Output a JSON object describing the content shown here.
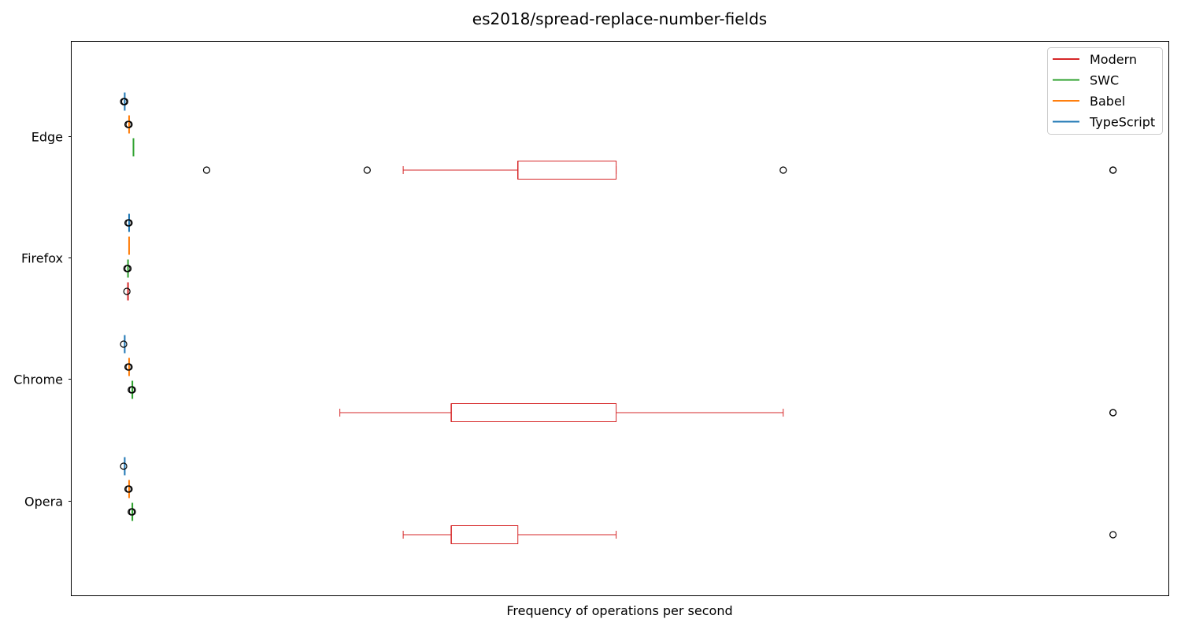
{
  "chart_data": {
    "type": "boxplot",
    "orientation": "horizontal",
    "title": "es2018/spread-replace-number-fields",
    "xlabel": "Frequency of operations per second",
    "ylabel": "",
    "x_ticks_shown": false,
    "grid": false,
    "legend_position": "top-right",
    "categories": [
      "Edge",
      "Firefox",
      "Chrome",
      "Opera"
    ],
    "series_order": [
      "TypeScript",
      "Babel",
      "SWC",
      "Modern"
    ],
    "legend": [
      "Modern",
      "SWC",
      "Babel",
      "TypeScript"
    ],
    "colors": {
      "Modern": "#d62728",
      "SWC": "#2ca02c",
      "Babel": "#ff7f0e",
      "TypeScript": "#1f77b4"
    },
    "xlim": [
      0,
      100
    ],
    "series": [
      {
        "name": "Modern",
        "boxes": [
          {
            "category": "Edge",
            "whisker_low": 30,
            "q1": 40.5,
            "median": 40.5,
            "q3": 49.5,
            "whisker_high": 49.5,
            "fliers": [
              12,
              26.7,
              64.8,
              95,
              95
            ]
          },
          {
            "category": "Firefox",
            "whisker_low": 4.7,
            "q1": 4.8,
            "median": 4.8,
            "q3": 4.8,
            "whisker_high": 4.8,
            "fliers": [
              4.7
            ]
          },
          {
            "category": "Chrome",
            "whisker_low": 24.2,
            "q1": 34.4,
            "median": 34.4,
            "q3": 49.5,
            "whisker_high": 64.8,
            "fliers": [
              95,
              95
            ]
          },
          {
            "category": "Opera",
            "whisker_low": 30,
            "q1": 34.4,
            "median": 34.4,
            "q3": 40.5,
            "whisker_high": 49.5,
            "fliers": [
              95
            ]
          }
        ]
      },
      {
        "name": "SWC",
        "boxes": [
          {
            "category": "Edge",
            "whisker_low": 5.3,
            "q1": 5.3,
            "median": 5.3,
            "q3": 5.3,
            "whisker_high": 5.3,
            "fliers": []
          },
          {
            "category": "Firefox",
            "whisker_low": 4.8,
            "q1": 4.8,
            "median": 4.8,
            "q3": 4.8,
            "whisker_high": 4.8,
            "fliers": [
              4.7,
              4.8
            ]
          },
          {
            "category": "Chrome",
            "whisker_low": 5.2,
            "q1": 5.2,
            "median": 5.2,
            "q3": 5.2,
            "whisker_high": 5.2,
            "fliers": [
              5.1,
              5.2
            ]
          },
          {
            "category": "Opera",
            "whisker_low": 5.2,
            "q1": 5.2,
            "median": 5.2,
            "q3": 5.2,
            "whisker_high": 5.2,
            "fliers": [
              5.1,
              5.2
            ]
          }
        ]
      },
      {
        "name": "Babel",
        "boxes": [
          {
            "category": "Edge",
            "whisker_low": 4.9,
            "q1": 4.9,
            "median": 4.9,
            "q3": 4.9,
            "whisker_high": 4.9,
            "fliers": [
              4.8,
              4.9
            ]
          },
          {
            "category": "Firefox",
            "whisker_low": 4.9,
            "q1": 4.9,
            "median": 4.9,
            "q3": 4.9,
            "whisker_high": 4.9,
            "fliers": []
          },
          {
            "category": "Chrome",
            "whisker_low": 4.9,
            "q1": 4.9,
            "median": 4.9,
            "q3": 4.9,
            "whisker_high": 4.9,
            "fliers": [
              4.8,
              4.9
            ]
          },
          {
            "category": "Opera",
            "whisker_low": 4.9,
            "q1": 4.9,
            "median": 4.9,
            "q3": 4.9,
            "whisker_high": 4.9,
            "fliers": [
              4.8,
              4.9
            ]
          }
        ]
      },
      {
        "name": "TypeScript",
        "boxes": [
          {
            "category": "Edge",
            "whisker_low": 4.5,
            "q1": 4.5,
            "median": 4.5,
            "q3": 4.5,
            "whisker_high": 4.5,
            "fliers": [
              4.4,
              4.5
            ]
          },
          {
            "category": "Firefox",
            "whisker_low": 4.9,
            "q1": 4.9,
            "median": 4.9,
            "q3": 4.9,
            "whisker_high": 4.9,
            "fliers": [
              4.8,
              4.9
            ]
          },
          {
            "category": "Chrome",
            "whisker_low": 4.5,
            "q1": 4.5,
            "median": 4.5,
            "q3": 4.5,
            "whisker_high": 4.5,
            "fliers": [
              4.4
            ]
          },
          {
            "category": "Opera",
            "whisker_low": 4.5,
            "q1": 4.5,
            "median": 4.5,
            "q3": 4.5,
            "whisker_high": 4.5,
            "fliers": [
              4.4
            ]
          }
        ]
      }
    ]
  }
}
